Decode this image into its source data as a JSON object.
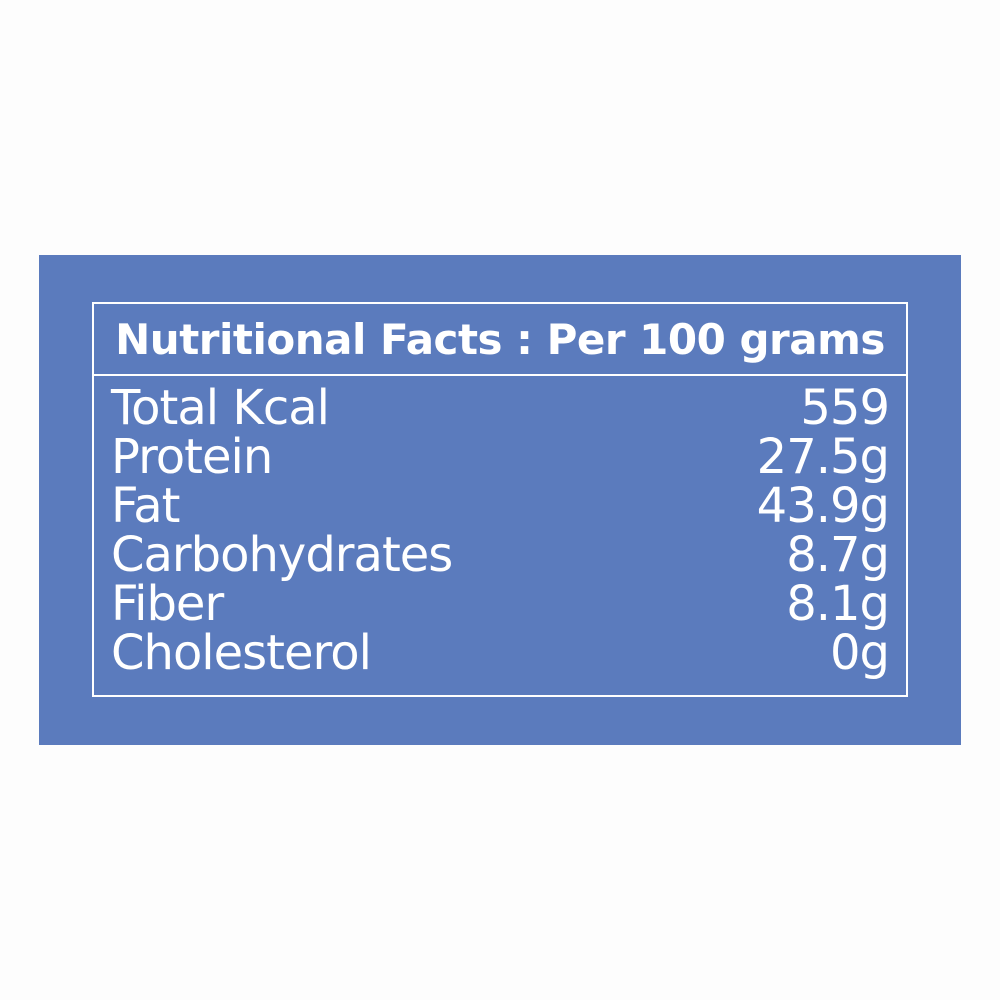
{
  "title": "Nutritional Facts : Per 100 grams",
  "rows": [
    {
      "label": "Total Kcal",
      "value": "559"
    },
    {
      "label": "Protein",
      "value": "27.5g"
    },
    {
      "label": "Fat",
      "value": "43.9g"
    },
    {
      "label": "Carbohydrates",
      "value": "8.7g"
    },
    {
      "label": "Fiber",
      "value": "8.1g"
    },
    {
      "label": "Cholesterol",
      "value": "0g"
    }
  ],
  "colors": {
    "panel": "#5b7bbd",
    "text": "#ffffff",
    "background": "#fdfdfd"
  }
}
